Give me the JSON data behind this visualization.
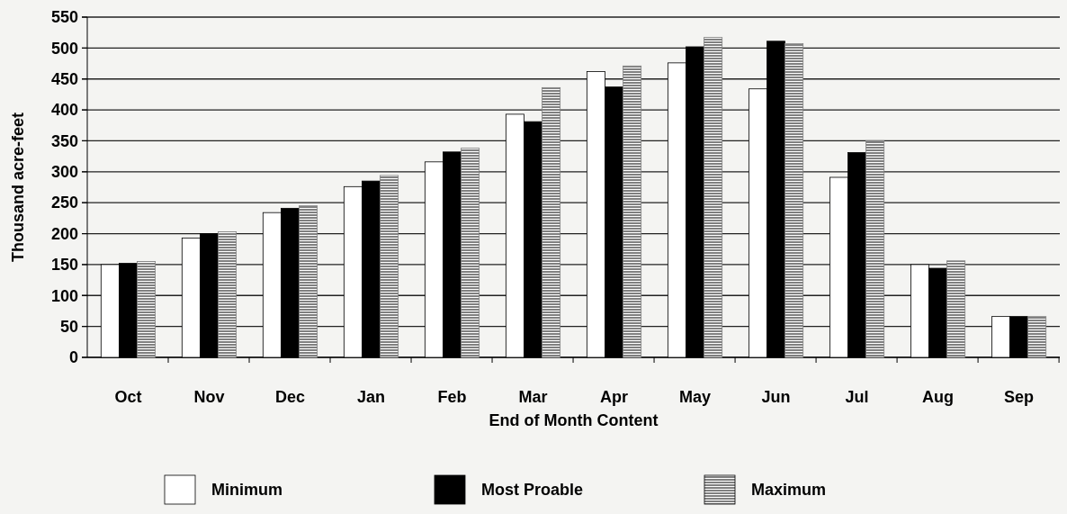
{
  "chart_data": {
    "type": "bar",
    "xlabel": "End of Month Content",
    "ylabel": "Thousand acre-feet",
    "categories": [
      "Oct",
      "Nov",
      "Dec",
      "Jan",
      "Feb",
      "Mar",
      "Apr",
      "May",
      "Jun",
      "Jul",
      "Aug",
      "Sep"
    ],
    "series": [
      {
        "name": "Minimum",
        "color": "#ffffff",
        "values": [
          150,
          193,
          234,
          276,
          316,
          393,
          462,
          476,
          434,
          291,
          150,
          66
        ]
      },
      {
        "name": "Most Proable",
        "color": "#000000",
        "values": [
          152,
          200,
          241,
          285,
          332,
          381,
          437,
          502,
          511,
          331,
          144,
          66
        ]
      },
      {
        "name": "Maximum",
        "color": "#808080",
        "values": [
          155,
          203,
          245,
          294,
          338,
          436,
          471,
          517,
          507,
          350,
          156,
          66
        ]
      }
    ],
    "ylim": [
      0,
      550
    ],
    "yticks": [
      0,
      50,
      100,
      150,
      200,
      250,
      300,
      350,
      400,
      450,
      500,
      550
    ],
    "grid": "y",
    "legend": "bottom"
  }
}
